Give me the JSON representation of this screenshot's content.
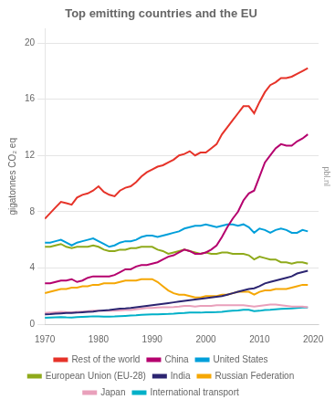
{
  "chart_data": {
    "type": "line",
    "title": "Top emitting countries and the EU",
    "ylabel": "gigatonnes CO₂ eq",
    "x": [
      1970,
      1971,
      1972,
      1973,
      1974,
      1975,
      1976,
      1977,
      1978,
      1979,
      1980,
      1981,
      1982,
      1983,
      1984,
      1985,
      1986,
      1987,
      1988,
      1989,
      1990,
      1991,
      1992,
      1993,
      1994,
      1995,
      1996,
      1997,
      1998,
      1999,
      2000,
      2001,
      2002,
      2003,
      2004,
      2005,
      2006,
      2007,
      2008,
      2009,
      2010,
      2011,
      2012,
      2013,
      2014,
      2015,
      2016,
      2017,
      2018,
      2019
    ],
    "xlim": [
      1970,
      2021
    ],
    "xticks": [
      1970,
      1980,
      1990,
      2000,
      2010,
      2020
    ],
    "ylim": [
      0,
      21
    ],
    "yticks": [
      0,
      4,
      8,
      12,
      16,
      20
    ],
    "grid": "y",
    "legend": "bottom",
    "annotations": [
      "pbl.nl"
    ],
    "series": [
      {
        "name": "Rest of the world",
        "color": "#e63329",
        "values": [
          7.5,
          7.9,
          8.3,
          8.7,
          8.6,
          8.5,
          9.0,
          9.2,
          9.3,
          9.5,
          9.8,
          9.4,
          9.2,
          9.1,
          9.5,
          9.7,
          9.8,
          10.1,
          10.5,
          10.8,
          11.0,
          11.2,
          11.3,
          11.5,
          11.7,
          12.0,
          12.1,
          12.3,
          12.0,
          12.2,
          12.2,
          12.5,
          12.8,
          13.5,
          14.0,
          14.5,
          15.0,
          15.5,
          15.5,
          15.0,
          15.8,
          16.5,
          17.0,
          17.2,
          17.5,
          17.5,
          17.6,
          17.8,
          18.0,
          18.2
        ]
      },
      {
        "name": "China",
        "color": "#b5006e",
        "values": [
          2.9,
          2.9,
          3.0,
          3.1,
          3.1,
          3.2,
          3.0,
          3.1,
          3.3,
          3.4,
          3.4,
          3.4,
          3.4,
          3.5,
          3.7,
          3.9,
          3.9,
          4.1,
          4.2,
          4.2,
          4.3,
          4.4,
          4.6,
          4.8,
          4.9,
          5.1,
          5.3,
          5.2,
          5.0,
          5.0,
          5.1,
          5.3,
          5.6,
          6.2,
          6.9,
          7.5,
          8.0,
          8.8,
          9.3,
          9.5,
          10.5,
          11.5,
          12.0,
          12.5,
          12.8,
          12.7,
          12.7,
          13.0,
          13.2,
          13.5
        ]
      },
      {
        "name": "United States",
        "color": "#009fda",
        "values": [
          5.8,
          5.8,
          5.9,
          6.0,
          5.8,
          5.6,
          5.8,
          5.9,
          6.0,
          6.1,
          5.9,
          5.7,
          5.5,
          5.6,
          5.8,
          5.9,
          5.9,
          6.0,
          6.2,
          6.3,
          6.3,
          6.2,
          6.3,
          6.4,
          6.5,
          6.6,
          6.8,
          6.9,
          7.0,
          7.0,
          7.1,
          7.0,
          6.9,
          7.0,
          7.1,
          7.1,
          7.0,
          7.1,
          6.9,
          6.5,
          6.8,
          6.7,
          6.5,
          6.7,
          6.8,
          6.7,
          6.5,
          6.5,
          6.7,
          6.6
        ]
      },
      {
        "name": "European Union (EU-28)",
        "color": "#8faa1b",
        "values": [
          5.5,
          5.5,
          5.6,
          5.7,
          5.5,
          5.4,
          5.5,
          5.5,
          5.5,
          5.6,
          5.5,
          5.3,
          5.2,
          5.2,
          5.3,
          5.3,
          5.4,
          5.4,
          5.5,
          5.5,
          5.5,
          5.3,
          5.2,
          5.0,
          5.1,
          5.2,
          5.3,
          5.2,
          5.1,
          5.0,
          5.1,
          5.0,
          5.0,
          5.1,
          5.1,
          5.0,
          5.0,
          5.0,
          4.9,
          4.6,
          4.8,
          4.7,
          4.6,
          4.6,
          4.4,
          4.4,
          4.3,
          4.4,
          4.4,
          4.3
        ]
      },
      {
        "name": "India",
        "color": "#2c2571",
        "values": [
          0.7,
          0.72,
          0.75,
          0.77,
          0.79,
          0.8,
          0.82,
          0.85,
          0.88,
          0.9,
          0.95,
          0.98,
          1.0,
          1.05,
          1.1,
          1.12,
          1.15,
          1.2,
          1.25,
          1.3,
          1.35,
          1.4,
          1.45,
          1.5,
          1.55,
          1.6,
          1.65,
          1.7,
          1.75,
          1.8,
          1.85,
          1.9,
          1.95,
          2.0,
          2.1,
          2.2,
          2.3,
          2.4,
          2.5,
          2.55,
          2.7,
          2.9,
          3.0,
          3.1,
          3.2,
          3.3,
          3.4,
          3.6,
          3.7,
          3.8
        ]
      },
      {
        "name": "Russian Federation",
        "color": "#f5a704",
        "values": [
          2.2,
          2.3,
          2.4,
          2.5,
          2.5,
          2.6,
          2.6,
          2.7,
          2.7,
          2.8,
          2.8,
          2.9,
          2.9,
          2.9,
          3.0,
          3.1,
          3.1,
          3.1,
          3.2,
          3.2,
          3.2,
          3.0,
          2.7,
          2.4,
          2.2,
          2.1,
          2.1,
          2.0,
          1.9,
          1.9,
          2.0,
          2.0,
          2.0,
          2.1,
          2.1,
          2.2,
          2.3,
          2.3,
          2.3,
          2.1,
          2.3,
          2.4,
          2.4,
          2.5,
          2.5,
          2.5,
          2.6,
          2.7,
          2.8,
          2.8
        ]
      },
      {
        "name": "Japan",
        "color": "#e9a0bb",
        "values": [
          0.8,
          0.82,
          0.85,
          0.88,
          0.86,
          0.85,
          0.88,
          0.9,
          0.92,
          0.95,
          0.95,
          0.95,
          0.95,
          0.96,
          0.98,
          1.0,
          1.0,
          1.05,
          1.1,
          1.15,
          1.15,
          1.18,
          1.2,
          1.2,
          1.22,
          1.25,
          1.3,
          1.3,
          1.25,
          1.3,
          1.3,
          1.3,
          1.35,
          1.35,
          1.35,
          1.35,
          1.35,
          1.35,
          1.3,
          1.25,
          1.3,
          1.35,
          1.4,
          1.4,
          1.35,
          1.3,
          1.25,
          1.25,
          1.25,
          1.2
        ]
      },
      {
        "name": "International transport",
        "color": "#00b0c8",
        "values": [
          0.45,
          0.47,
          0.49,
          0.5,
          0.48,
          0.47,
          0.5,
          0.52,
          0.54,
          0.56,
          0.55,
          0.54,
          0.54,
          0.55,
          0.57,
          0.59,
          0.61,
          0.63,
          0.66,
          0.68,
          0.7,
          0.7,
          0.72,
          0.73,
          0.75,
          0.78,
          0.8,
          0.83,
          0.82,
          0.82,
          0.85,
          0.85,
          0.86,
          0.88,
          0.92,
          0.95,
          0.98,
          1.02,
          1.02,
          0.92,
          0.95,
          1.0,
          1.02,
          1.05,
          1.08,
          1.1,
          1.12,
          1.15,
          1.18,
          1.18
        ]
      }
    ]
  }
}
